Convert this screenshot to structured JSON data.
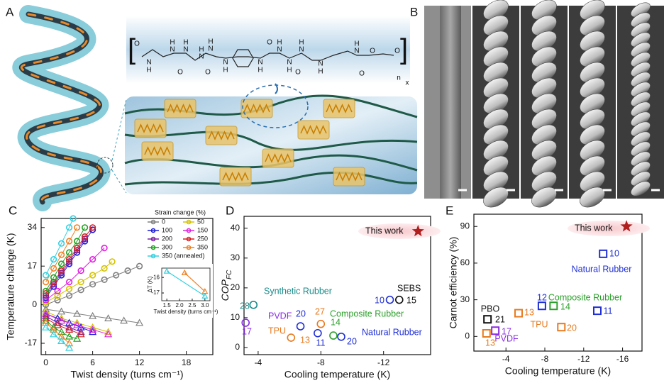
{
  "panels": [
    "A",
    "B"
  ],
  "structure": {
    "atoms": [
      "O",
      "N",
      "H",
      "H",
      "N",
      "H",
      "N",
      "O",
      "H",
      "N",
      "H",
      "N",
      "O",
      "H",
      "N",
      "H",
      "N",
      "O",
      "H",
      "N",
      "H",
      "N",
      "H",
      "N",
      "O",
      "N",
      "H",
      "H",
      "N",
      "O",
      "O",
      "O",
      "n",
      "x"
    ]
  },
  "chart_data": [
    {
      "type": "line",
      "panel": "C",
      "xlabel": "Twist density (turns cm⁻¹)",
      "ylabel": "Temperature change (K)",
      "xlim": [
        -0.6,
        21.4
      ],
      "xticks": [
        0,
        6,
        12,
        18
      ],
      "ylim": [
        -22,
        38
      ],
      "yticks": [
        -17,
        0,
        17,
        34
      ],
      "legend_title": "Strain change (%)",
      "legend": "upper right",
      "series": [
        {
          "name": "0",
          "color": "#808080",
          "x": [
            0,
            1.5,
            3,
            4.5,
            6,
            7.5,
            9,
            10.5,
            12
          ],
          "values": [
            0,
            2,
            4,
            6.5,
            9,
            11,
            13,
            15,
            17
          ],
          "x_release": [
            0,
            2,
            4,
            6,
            8,
            10,
            12
          ],
          "values_release": [
            -2,
            -3,
            -4,
            -5,
            -6,
            -7,
            -8
          ]
        },
        {
          "name": "50",
          "color": "#d4c200",
          "x": [
            0,
            1.5,
            3,
            4.5,
            6,
            7.5,
            8.5
          ],
          "values": [
            1,
            4,
            7,
            10,
            13,
            16,
            19
          ],
          "x_release": [
            0,
            2,
            4,
            6,
            8
          ],
          "values_release": [
            -3,
            -6,
            -8,
            -10,
            -12
          ]
        },
        {
          "name": "100",
          "color": "#1a1adb",
          "x": [
            0,
            1,
            2,
            3,
            4,
            5,
            6
          ],
          "values": [
            3,
            8,
            13,
            18,
            23,
            28,
            33
          ],
          "x_release": [
            0,
            1.5,
            3,
            4.5,
            6
          ],
          "values_release": [
            -4,
            -6,
            -8,
            -10,
            -12
          ]
        },
        {
          "name": "150",
          "color": "#e020e0",
          "x": [
            0,
            1.5,
            3,
            4.5,
            6,
            7.5
          ],
          "values": [
            2,
            6,
            10,
            15,
            20,
            25
          ],
          "x_release": [
            0,
            2,
            4,
            6,
            8
          ],
          "values_release": [
            -4,
            -7,
            -9,
            -11,
            -13
          ]
        },
        {
          "name": "200",
          "color": "#7b1fa2",
          "x": [
            0,
            1,
            2,
            3,
            4,
            5
          ],
          "values": [
            4,
            9,
            14,
            19,
            24,
            29
          ],
          "x_release": [
            0,
            1.5,
            3,
            4.5
          ],
          "values_release": [
            -5,
            -8,
            -10,
            -12
          ]
        },
        {
          "name": "250",
          "color": "#d62020",
          "x": [
            0,
            1,
            2,
            3,
            4,
            5,
            6
          ],
          "values": [
            5,
            10,
            15,
            20,
            25,
            30,
            34
          ],
          "x_release": [
            0,
            1.5,
            3,
            4.5
          ],
          "values_release": [
            -6,
            -9,
            -11,
            -13
          ]
        },
        {
          "name": "300",
          "color": "#20a020",
          "x": [
            0,
            1,
            2,
            3,
            4,
            5
          ],
          "values": [
            6,
            12,
            18,
            23,
            28,
            34
          ],
          "x_release": [
            0,
            1,
            2,
            3,
            4
          ],
          "values_release": [
            -7,
            -10,
            -12,
            -14,
            -15
          ]
        },
        {
          "name": "350",
          "color": "#f08020",
          "x": [
            0,
            1,
            2,
            3,
            4
          ],
          "values": [
            10,
            16,
            22,
            28,
            34
          ],
          "x_release": [
            0,
            1,
            2,
            3
          ],
          "values_release": [
            -8,
            -11,
            -14,
            -17
          ]
        },
        {
          "name": "350 (annealed)",
          "color": "#30d0e0",
          "x": [
            0,
            1,
            2,
            3,
            3.5
          ],
          "values": [
            13,
            20,
            27,
            34,
            38
          ],
          "x_release": [
            0,
            1,
            2,
            3
          ],
          "values_release": [
            -10,
            -13,
            -16,
            -19
          ]
        }
      ],
      "inset": {
        "xlabel": "Twist density (turns cm⁻¹)",
        "ylabel": "ΔT (K)",
        "xlim": [
          1.3,
          3.2
        ],
        "xticks": [
          1.5,
          {
            "value": 2,
            "label": "2.0"
          },
          2.5,
          {
            "value": 3,
            "label": "3.0"
          }
        ],
        "ylim": [
          -17.5,
          -15.4
        ],
        "yticks": [
          -16,
          -17
        ],
        "series": [
          {
            "color": "#30d0e0",
            "x": [
              1.5,
              3.0
            ],
            "values": [
              -15.6,
              -17.2
            ]
          },
          {
            "color": "#f08020",
            "x": [
              2.2,
              3.0
            ],
            "values": [
              -15.7,
              -16.9
            ]
          }
        ]
      }
    },
    {
      "type": "scatter",
      "panel": "D",
      "marker": "circle",
      "xlabel": "Cooling temperature (K)",
      "ylabel": "COP",
      "ylabel_sub": "FC",
      "xlim": [
        -3.1,
        -15
      ],
      "xticks": [
        -4,
        -8,
        -12
      ],
      "ylim": [
        -2.4,
        44
      ],
      "yticks": [
        0,
        10,
        20,
        30,
        40
      ],
      "series": [
        {
          "name": "Synthetic Rubber",
          "color": "#1a8a8a",
          "x": [
            -3.7
          ],
          "values": [
            14.3
          ],
          "refs": [
            28
          ]
        },
        {
          "name": "PVDF",
          "color": "#8a2be2",
          "x": [
            -3.2
          ],
          "values": [
            8.3
          ],
          "refs": [
            17
          ]
        },
        {
          "name": "TPU",
          "color": "#e87a1e",
          "x": [
            -6.1,
            -8
          ],
          "values": [
            3.3,
            7.9
          ],
          "refs": [
            13,
            27
          ]
        },
        {
          "name": "Natural Rubber",
          "color": "#1f2fd6",
          "x": [
            -6.7,
            -7.8,
            -9.3,
            -12.4
          ],
          "values": [
            7.1,
            4.8,
            3.6,
            16
          ],
          "refs": [
            20,
            11,
            20,
            10
          ]
        },
        {
          "name": "Composite Rubber",
          "color": "#2ca02c",
          "x": [
            -8.8
          ],
          "values": [
            4
          ],
          "refs": [
            14
          ]
        },
        {
          "name": "SEBS",
          "color": "#111111",
          "x": [
            -13
          ],
          "values": [
            16
          ],
          "refs": [
            15
          ]
        },
        {
          "name": "This work",
          "color": "#b01e1e",
          "marker": "star",
          "x": [
            -14.2
          ],
          "values": [
            39
          ]
        }
      ]
    },
    {
      "type": "scatter",
      "panel": "E",
      "marker": "square",
      "xlabel": "Cooling temperature (K)",
      "ylabel": "Carnot efficiency (%)",
      "xlim": [
        -0.7,
        -18
      ],
      "xticks": [
        -4,
        -8,
        -12,
        -16
      ],
      "ylim": [
        -12,
        100
      ],
      "yticks": [
        0,
        30,
        60,
        90
      ],
      "series": [
        {
          "name": "PBO",
          "color": "#111111",
          "x": [
            -2.1
          ],
          "values": [
            14
          ],
          "refs": [
            21
          ]
        },
        {
          "name": "TPU",
          "color": "#e87a1e",
          "x": [
            -5.3,
            -2,
            -9.7
          ],
          "values": [
            19,
            2.5,
            7.6
          ],
          "refs": [
            13,
            13,
            20
          ]
        },
        {
          "name": "PVDF",
          "color": "#8a2be2",
          "x": [
            -2.9
          ],
          "values": [
            4.7
          ],
          "refs": [
            17
          ]
        },
        {
          "name": "Natural Rubber",
          "color": "#1f2fd6",
          "x": [
            -7.7,
            -13.4,
            -14
          ],
          "values": [
            25,
            21,
            67.6
          ],
          "refs": [
            12,
            11,
            10
          ]
        },
        {
          "name": "Composite Rubber",
          "color": "#2ca02c",
          "x": [
            -8.9
          ],
          "values": [
            25
          ],
          "refs": [
            14
          ]
        },
        {
          "name": "This work",
          "color": "#b01e1e",
          "marker": "star",
          "x": [
            -16.4
          ],
          "values": [
            90
          ]
        }
      ]
    }
  ]
}
